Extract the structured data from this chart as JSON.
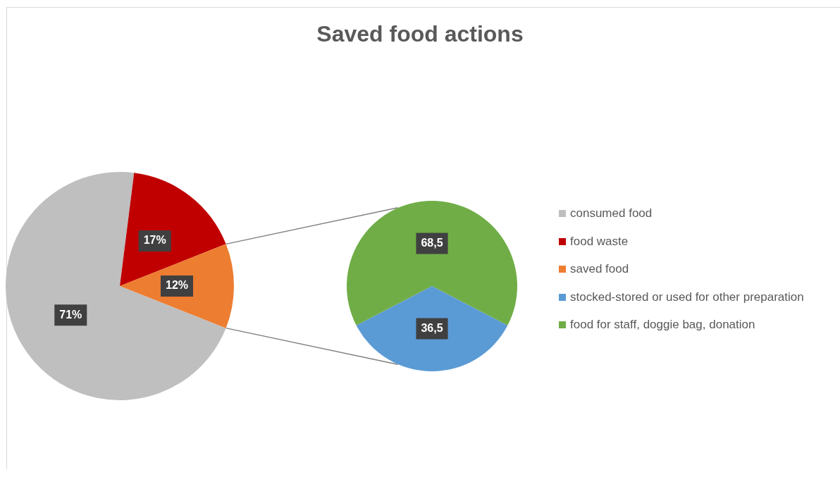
{
  "chart_data": [
    {
      "type": "pie",
      "title": "Saved food actions",
      "categories": [
        "consumed food",
        "food waste",
        "saved food"
      ],
      "values": [
        71,
        17,
        12
      ],
      "colors": [
        "#bfbfbf",
        "#c00000",
        "#ed7d31"
      ],
      "value_labels": [
        "71%",
        "17%",
        "12%"
      ],
      "legend": "right"
    },
    {
      "type": "pie",
      "categories": [
        "stocked-stored or used for other preparation",
        "food for staff, doggie bag, donation"
      ],
      "values": [
        36.5,
        68.5
      ],
      "colors": [
        "#5b9bd5",
        "#70ad47"
      ],
      "value_labels": [
        "36,5",
        "68,5"
      ],
      "legend": "right"
    }
  ]
}
